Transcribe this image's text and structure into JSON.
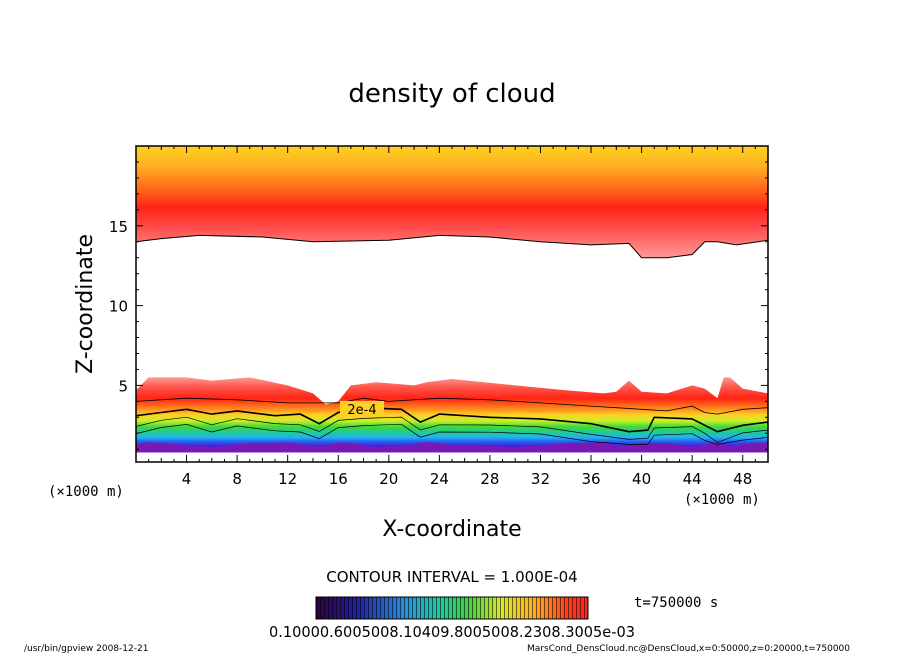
{
  "chart_data": {
    "type": "heatmap",
    "title": "density of cloud",
    "xlabel": "X-coordinate",
    "ylabel": "Z-coordinate",
    "x_unit": "(×1000 m)",
    "y_unit": "(×1000 m)",
    "xlim": [
      0,
      50
    ],
    "ylim": [
      0.2,
      20
    ],
    "x_ticks": [
      4,
      8,
      12,
      16,
      20,
      24,
      28,
      32,
      36,
      40,
      44,
      48
    ],
    "y_ticks": [
      5,
      10,
      15
    ],
    "contour_label": "2e-4",
    "contour_interval_text": "CONTOUR INTERVAL = 1.000E-04",
    "time_text": "t=750000 s",
    "colorbar_labels_text": "0.10000.6005008.10409.8005008.2308.3005e-03",
    "upper_layer": {
      "top_z": 20,
      "bottom_x": [
        0,
        2,
        5,
        10,
        14,
        20,
        24,
        28,
        32,
        36,
        39,
        40,
        42,
        44,
        45,
        46,
        47.5,
        50
      ],
      "bottom_z": [
        14,
        14.2,
        14.4,
        14.3,
        14,
        14.1,
        14.4,
        14.3,
        14,
        13.8,
        13.9,
        13,
        13,
        13.2,
        14,
        14,
        13.8,
        14.1
      ]
    },
    "lower_layer": {
      "bottom_z": 0.8,
      "top_x": [
        0,
        1,
        4,
        6,
        9,
        12,
        14,
        15,
        16,
        17,
        19,
        22,
        23,
        25,
        30,
        34,
        37,
        38,
        39,
        40,
        42,
        44,
        45,
        46,
        46.5,
        47,
        48,
        50
      ],
      "top_z": [
        4.7,
        5.5,
        5.5,
        5.3,
        5.5,
        5.0,
        4.5,
        3.8,
        4.0,
        5.0,
        5.2,
        5.0,
        5.2,
        5.4,
        5.0,
        4.7,
        4.5,
        4.6,
        5.3,
        4.6,
        4.5,
        5.0,
        4.8,
        4.2,
        5.5,
        5.5,
        4.8,
        4.5
      ],
      "contour_2e4_x": [
        0,
        2,
        4,
        6,
        8,
        11,
        13,
        14.5,
        16,
        18,
        21,
        22.5,
        24,
        28,
        32,
        36,
        39,
        40.5,
        41,
        44,
        45,
        46,
        48,
        50
      ],
      "contour_2e4_z": [
        3.1,
        3.3,
        3.5,
        3.2,
        3.4,
        3.1,
        3.2,
        2.6,
        3.3,
        3.6,
        3.5,
        2.7,
        3.2,
        3.0,
        2.9,
        2.6,
        2.1,
        2.2,
        3.0,
        2.9,
        2.5,
        2.1,
        2.5,
        2.7
      ],
      "contour_upper_x": [
        0,
        4,
        8,
        12,
        16,
        18,
        20,
        24,
        28,
        32,
        36,
        40,
        42,
        44,
        45,
        46,
        48,
        50
      ],
      "contour_upper_z": [
        4.0,
        4.2,
        4.1,
        3.9,
        3.9,
        4.2,
        4.0,
        4.2,
        4.1,
        3.9,
        3.7,
        3.5,
        3.4,
        3.7,
        3.3,
        3.2,
        3.5,
        3.6
      ]
    },
    "colors": {
      "plot_background": "#ffffff",
      "frame": "#000000",
      "cloud_palette": [
        "#ff4a4a",
        "#ff8a80",
        "#ff3a24",
        "#ff7c1e",
        "#ffb824",
        "#f0f030",
        "#78e020",
        "#1ec85a",
        "#20d2c8",
        "#2a6cf0",
        "#3c1ee0",
        "#7a18b4"
      ]
    }
  },
  "footer": {
    "left": "/usr/bin/gpview   2008-12-21",
    "right": "MarsCond_DensCloud.nc@DensCloud,x=0:50000,z=0:20000,t=750000"
  }
}
